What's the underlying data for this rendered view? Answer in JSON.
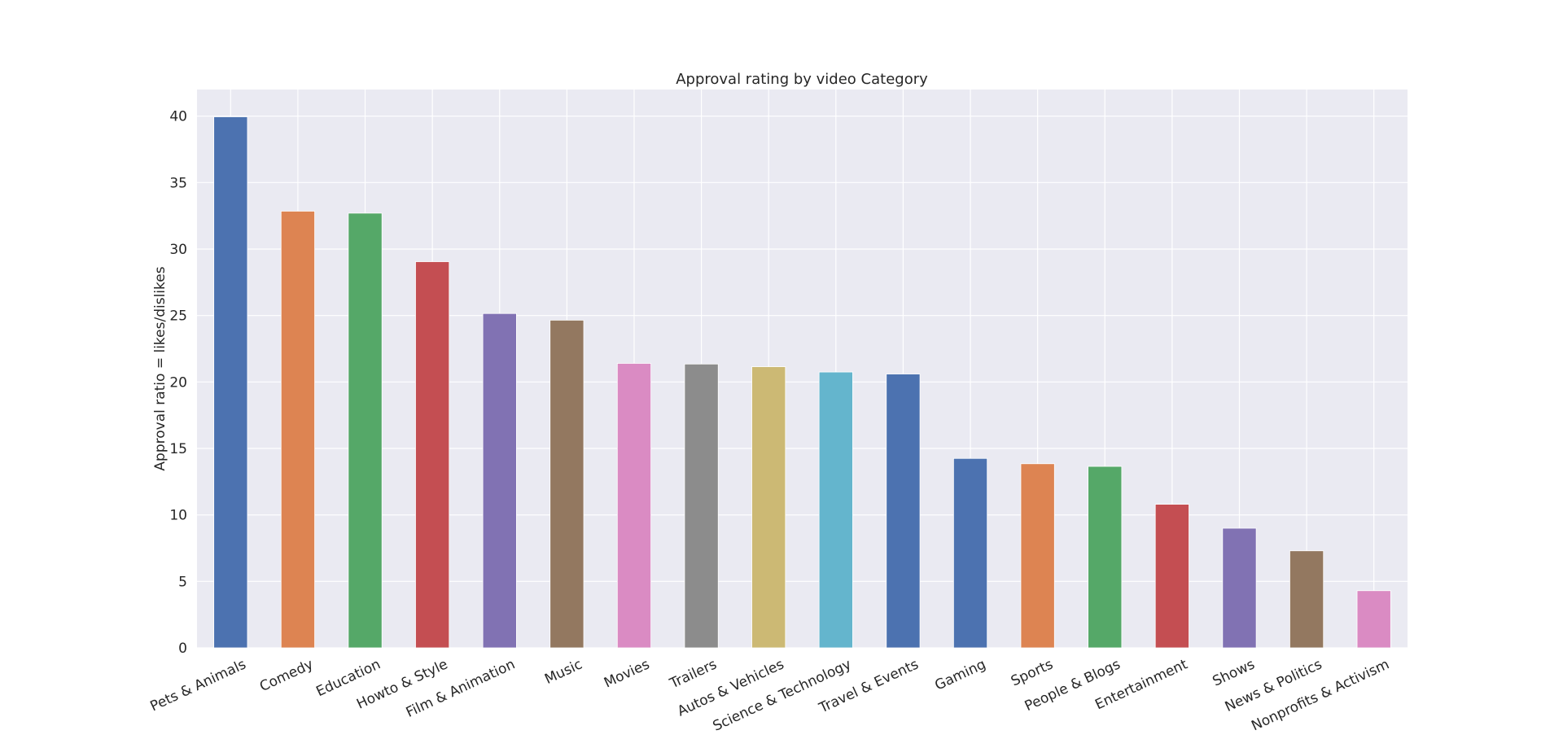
{
  "chart_data": {
    "type": "bar",
    "title": "Approval rating by video Category",
    "xlabel": "",
    "ylabel": "Approval ratio = likes/dislikes",
    "ylim": [
      0,
      42
    ],
    "yticks": [
      0,
      5,
      10,
      15,
      20,
      25,
      30,
      35,
      40
    ],
    "grid": true,
    "categories": [
      "Pets & Animals",
      "Comedy",
      "Education",
      "Howto & Style",
      "Film & Animation",
      "Music",
      "Movies",
      "Trailers",
      "Autos & Vehicles",
      "Science & Technology",
      "Travel & Events",
      "Gaming",
      "Sports",
      "People & Blogs",
      "Entertainment",
      "Shows",
      "News & Politics",
      "Nonprofits & Activism"
    ],
    "values": [
      39.95,
      32.85,
      32.7,
      29.05,
      25.15,
      24.65,
      21.4,
      21.35,
      21.15,
      20.75,
      20.6,
      14.25,
      13.85,
      13.65,
      10.8,
      9.0,
      7.3,
      4.3
    ],
    "colors": [
      "#4c72b0",
      "#dd8452",
      "#55a868",
      "#c44e52",
      "#8172b3",
      "#937860",
      "#da8bc3",
      "#8c8c8c",
      "#ccb974",
      "#64b5cd",
      "#4c72b0",
      "#4c72b0",
      "#dd8452",
      "#55a868",
      "#c44e52",
      "#8172b3",
      "#937860",
      "#da8bc3"
    ],
    "background": "#eaeaf2",
    "grid_color": "#ffffff"
  }
}
